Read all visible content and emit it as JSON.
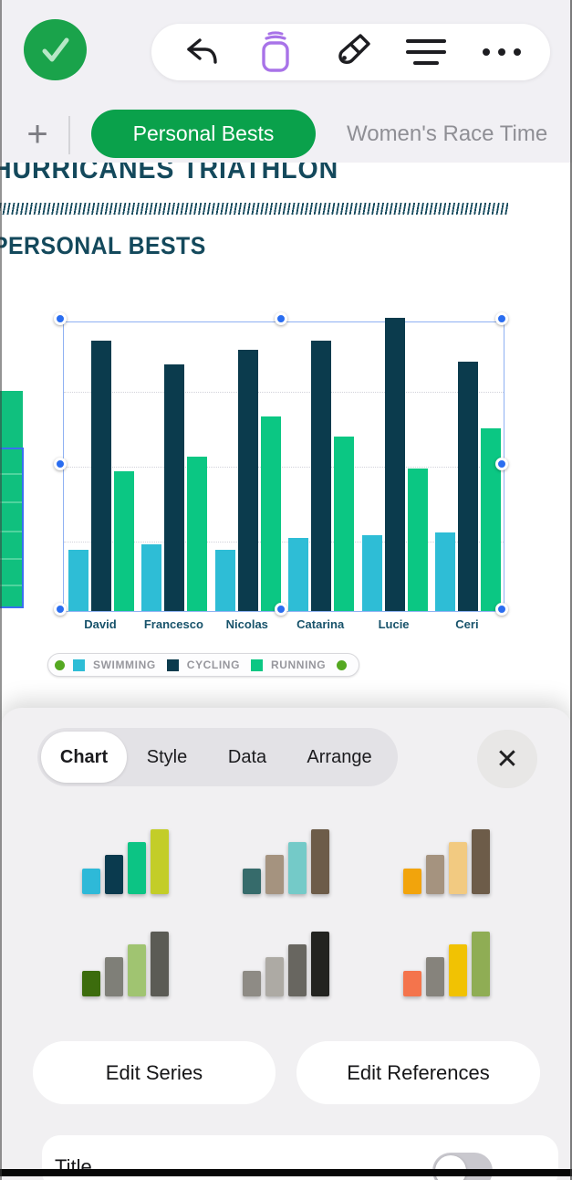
{
  "toolbar": {
    "done_icon": "checkmark",
    "icons": [
      "undo",
      "ink-jar",
      "format-brush",
      "view-options",
      "more"
    ],
    "more_label": "",
    "accent_green": "#1aa34b",
    "accent_purple": "#a873e8"
  },
  "tabs": {
    "add_label": "+",
    "active_tab": "Personal Bests",
    "next_tab": "Women's Race Time",
    "active_color": "#0aa14b"
  },
  "doc": {
    "title": "HURRICANES TRIATHLON",
    "subtitle": "PERSONAL BESTS",
    "heading_color": "#14495c"
  },
  "chart_data": {
    "type": "bar",
    "title": "",
    "categories": [
      "David",
      "Francesco",
      "Nicolas",
      "Catarina",
      "Lucie",
      "Ceri"
    ],
    "series": [
      {
        "name": "SWIMMING",
        "color": "#2ebdd6",
        "values": [
          21,
          23,
          21,
          25,
          26,
          27
        ]
      },
      {
        "name": "CYCLING",
        "color": "#0b3b4d",
        "values": [
          93,
          85,
          90,
          93,
          101,
          86
        ]
      },
      {
        "name": "RUNNING",
        "color": "#0bc783",
        "values": [
          48,
          53,
          67,
          60,
          49,
          63
        ]
      }
    ],
    "values_unit": "relative bar height, % of plot area (no y-axis labels visible)",
    "ylim": [
      0,
      100
    ],
    "grid": "horizontal dotted, at 25/50/75%",
    "legend_position": "below chart, pill with green end caps",
    "selected": true
  },
  "legend": {
    "endcap_color": "#54a821"
  },
  "panel": {
    "tabs": [
      {
        "label": "Chart",
        "active": true
      },
      {
        "label": "Style",
        "active": false
      },
      {
        "label": "Data",
        "active": false
      },
      {
        "label": "Arrange",
        "active": false
      }
    ],
    "close_label": "✕",
    "thumb_bar_heights": [
      28,
      43,
      57,
      71
    ],
    "styles": [
      {
        "colors": [
          "#2eb9d8",
          "#0a3a4e",
          "#0cc484",
          "#c3cd28"
        ]
      },
      {
        "colors": [
          "#366b6b",
          "#a5937f",
          "#74cac8",
          "#6d5c49"
        ]
      },
      {
        "colors": [
          "#f2a40c",
          "#a5937f",
          "#f2ca81",
          "#6d5c49"
        ]
      },
      {
        "colors": [
          "#3c6c0d",
          "#7f7f78",
          "#a0c471",
          "#5b5b55"
        ]
      },
      {
        "colors": [
          "#8e8b85",
          "#adaaa4",
          "#686660",
          "#232320"
        ]
      },
      {
        "colors": [
          "#f4744c",
          "#86837c",
          "#f1c203",
          "#8fad54"
        ]
      }
    ],
    "buttons": [
      {
        "label": "Edit Series"
      },
      {
        "label": "Edit References"
      }
    ],
    "title_row": {
      "label": "Title",
      "toggle": "off"
    }
  }
}
